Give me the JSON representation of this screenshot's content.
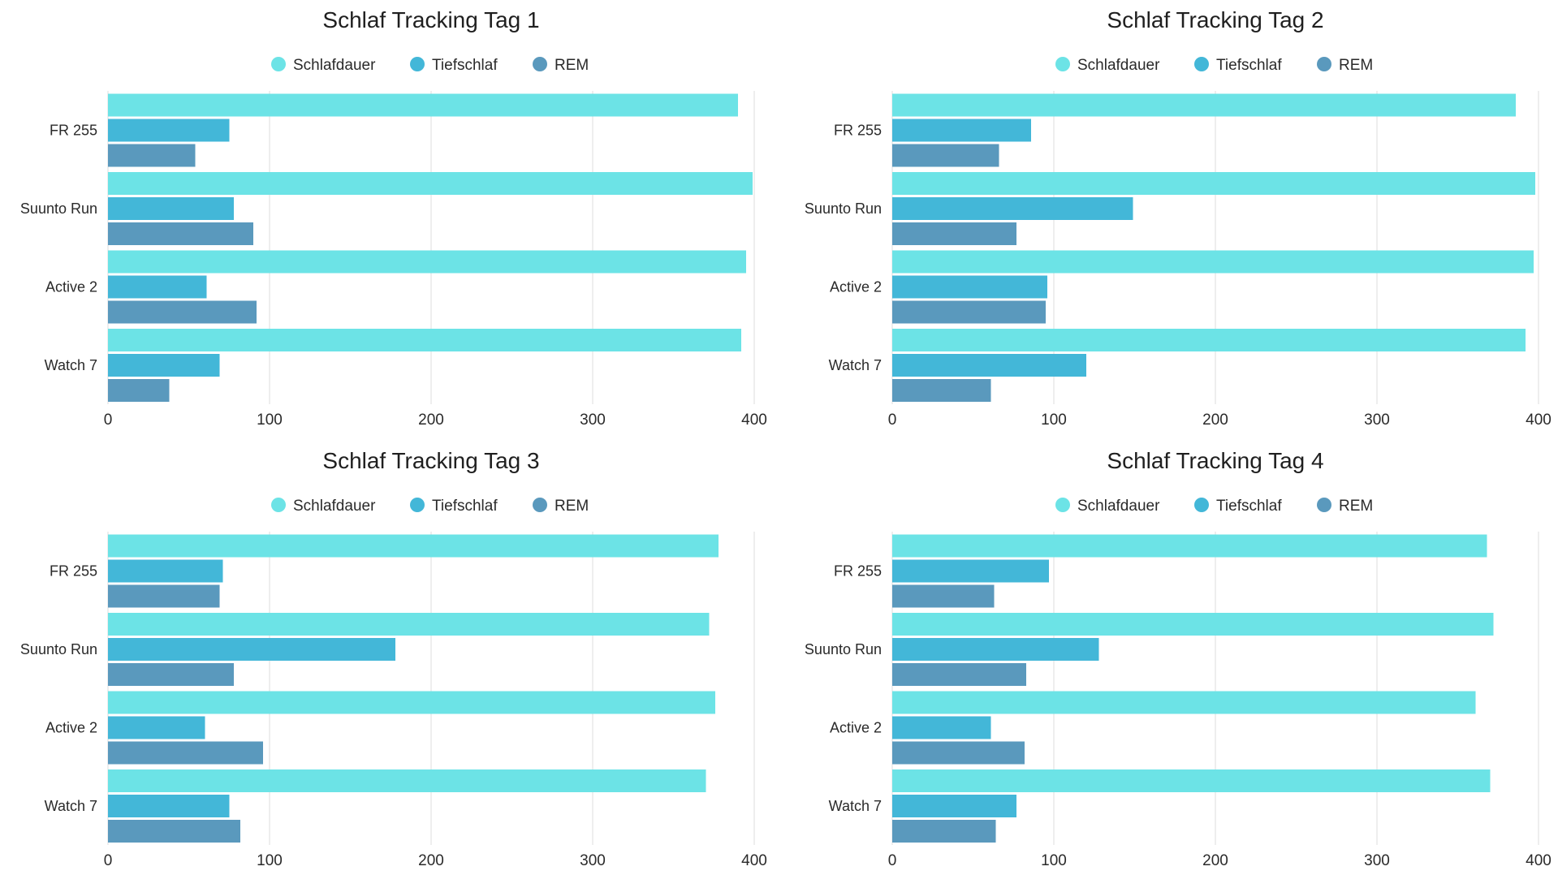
{
  "chart_data": [
    {
      "type": "bar",
      "orientation": "horizontal",
      "title": "Schlaf Tracking Tag 1",
      "categories": [
        "FR 255",
        "Suunto Run",
        "Active 2",
        "Watch 7"
      ],
      "series": [
        {
          "name": "Schlafdauer",
          "color": "#6ce3e6",
          "values": [
            390,
            399,
            395,
            392
          ]
        },
        {
          "name": "Tiefschlaf",
          "color": "#43b7d8",
          "values": [
            75,
            78,
            61,
            69
          ]
        },
        {
          "name": "REM",
          "color": "#5a99bd",
          "values": [
            54,
            90,
            92,
            38
          ]
        }
      ],
      "xlim": [
        0,
        400
      ],
      "xticks": [
        0,
        100,
        200,
        300,
        400
      ],
      "grid": true,
      "legend": "top-center"
    },
    {
      "type": "bar",
      "orientation": "horizontal",
      "title": "Schlaf Tracking Tag 2",
      "categories": [
        "FR 255",
        "Suunto Run",
        "Active 2",
        "Watch 7"
      ],
      "series": [
        {
          "name": "Schlafdauer",
          "color": "#6ce3e6",
          "values": [
            386,
            398,
            397,
            392
          ]
        },
        {
          "name": "Tiefschlaf",
          "color": "#43b7d8",
          "values": [
            86,
            149,
            96,
            120
          ]
        },
        {
          "name": "REM",
          "color": "#5a99bd",
          "values": [
            66,
            77,
            95,
            61
          ]
        }
      ],
      "xlim": [
        0,
        400
      ],
      "xticks": [
        0,
        100,
        200,
        300,
        400
      ],
      "grid": true,
      "legend": "top-center"
    },
    {
      "type": "bar",
      "orientation": "horizontal",
      "title": "Schlaf Tracking Tag 3",
      "categories": [
        "FR 255",
        "Suunto Run",
        "Active 2",
        "Watch 7"
      ],
      "series": [
        {
          "name": "Schlafdauer",
          "color": "#6ce3e6",
          "values": [
            378,
            372,
            376,
            370
          ]
        },
        {
          "name": "Tiefschlaf",
          "color": "#43b7d8",
          "values": [
            71,
            178,
            60,
            75
          ]
        },
        {
          "name": "REM",
          "color": "#5a99bd",
          "values": [
            69,
            78,
            96,
            82
          ]
        }
      ],
      "xlim": [
        0,
        400
      ],
      "xticks": [
        0,
        100,
        200,
        300,
        400
      ],
      "grid": true,
      "legend": "top-center"
    },
    {
      "type": "bar",
      "orientation": "horizontal",
      "title": "Schlaf Tracking Tag 4",
      "categories": [
        "FR 255",
        "Suunto Run",
        "Active 2",
        "Watch 7"
      ],
      "series": [
        {
          "name": "Schlafdauer",
          "color": "#6ce3e6",
          "values": [
            368,
            372,
            361,
            370
          ]
        },
        {
          "name": "Tiefschlaf",
          "color": "#43b7d8",
          "values": [
            97,
            128,
            61,
            77
          ]
        },
        {
          "name": "REM",
          "color": "#5a99bd",
          "values": [
            63,
            83,
            82,
            64
          ]
        }
      ],
      "xlim": [
        0,
        400
      ],
      "xticks": [
        0,
        100,
        200,
        300,
        400
      ],
      "grid": true,
      "legend": "top-center"
    }
  ]
}
